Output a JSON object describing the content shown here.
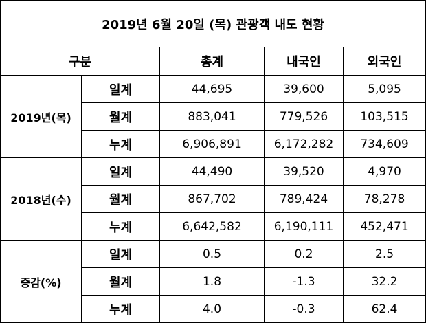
{
  "title": "2019년 6월 20일 (목) 관광객 내도 현황",
  "headers": {
    "category": "구분",
    "total": "총계",
    "domestic": "내국인",
    "foreign": "외국인"
  },
  "groups": [
    {
      "label": "2019년(목)",
      "rows": [
        {
          "sub": "일계",
          "total": "44,695",
          "domestic": "39,600",
          "foreign": "5,095"
        },
        {
          "sub": "월계",
          "total": "883,041",
          "domestic": "779,526",
          "foreign": "103,515"
        },
        {
          "sub": "누계",
          "total": "6,906,891",
          "domestic": "6,172,282",
          "foreign": "734,609"
        }
      ]
    },
    {
      "label": "2018년(수)",
      "rows": [
        {
          "sub": "일계",
          "total": "44,490",
          "domestic": "39,520",
          "foreign": "4,970"
        },
        {
          "sub": "월계",
          "total": "867,702",
          "domestic": "789,424",
          "foreign": "78,278"
        },
        {
          "sub": "누계",
          "total": "6,642,582",
          "domestic": "6,190,111",
          "foreign": "452,471"
        }
      ]
    },
    {
      "label": "증감(%)",
      "rows": [
        {
          "sub": "일계",
          "total": "0.5",
          "domestic": "0.2",
          "foreign": "2.5"
        },
        {
          "sub": "월계",
          "total": "1.8",
          "domestic": "-1.3",
          "foreign": "32.2"
        },
        {
          "sub": "누계",
          "total": "4.0",
          "domestic": "-0.3",
          "foreign": "62.4"
        }
      ]
    }
  ]
}
